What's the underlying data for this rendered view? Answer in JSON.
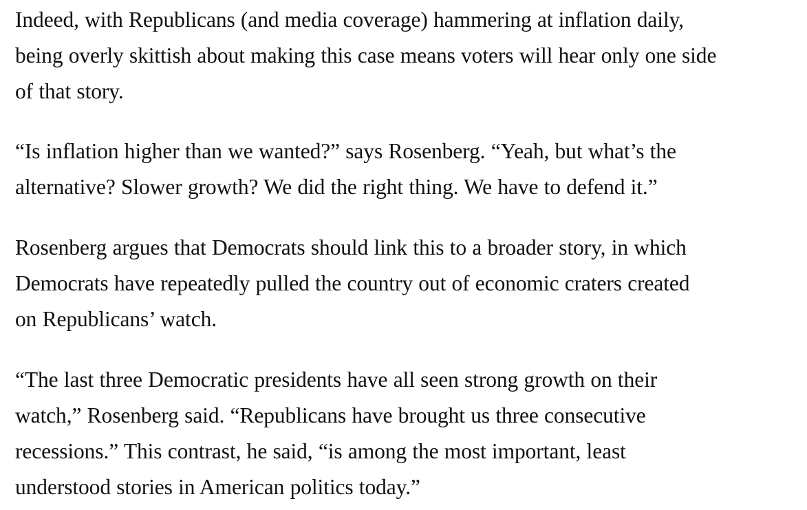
{
  "article": {
    "paragraphs": [
      {
        "lines": [
          "Indeed, with Republicans (and media coverage) hammering at inflation daily,",
          "being overly skittish about making this case means voters will hear only one side",
          "of that story."
        ]
      },
      {
        "lines": [
          "“Is inflation higher than we wanted?” says Rosenberg. “Yeah, but what’s the",
          "alternative? Slower growth? We did the right thing. We have to defend it.”"
        ]
      },
      {
        "lines": [
          "Rosenberg argues that Democrats should link this to a broader story, in which",
          "Democrats have repeatedly pulled the country out of economic craters created",
          "on Republicans’ watch."
        ]
      },
      {
        "lines": [
          "“The last three Democratic presidents have all seen strong growth on their",
          "watch,” Rosenberg said. “Republicans have brought us three consecutive",
          "recessions.” This contrast, he said, “is among the most important, least",
          "understood stories in American politics today.”"
        ]
      }
    ]
  }
}
